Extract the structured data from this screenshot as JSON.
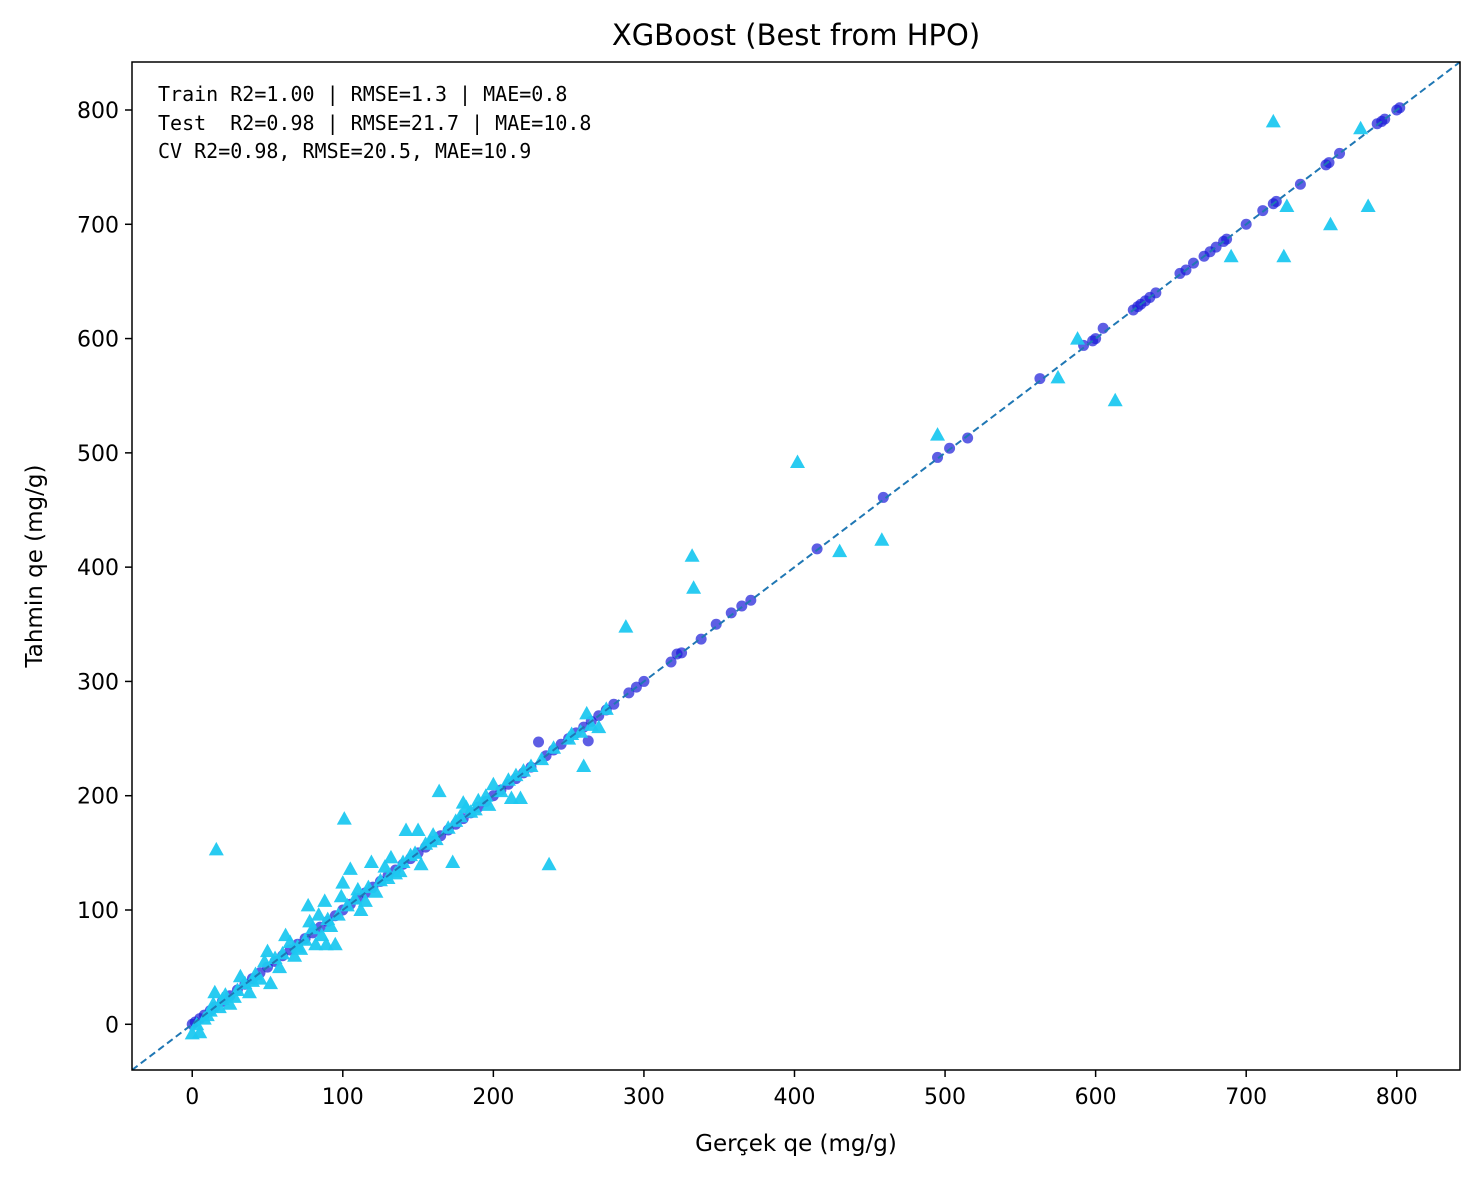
{
  "chart_data": {
    "type": "scatter",
    "title": "XGBoost (Best from HPO)",
    "xlabel": "Gerçek qe (mg/g)",
    "ylabel": "Tahmin qe (mg/g)",
    "xlim": [
      -40,
      842
    ],
    "ylim": [
      -40,
      842
    ],
    "xticks": [
      0,
      100,
      200,
      300,
      400,
      500,
      600,
      700,
      800
    ],
    "yticks": [
      0,
      100,
      200,
      300,
      400,
      500,
      600,
      700,
      800
    ],
    "grid": false,
    "annotations": [
      "Train R2=1.00 | RMSE=1.3 | MAE=0.8",
      "Test  R2=0.98 | RMSE=21.7 | MAE=10.8",
      "CV R2=0.98, RMSE=20.5, MAE=10.9"
    ],
    "reference_line": {
      "style": "dashed",
      "color": "#1f77b4",
      "from": [
        -40,
        -40
      ],
      "to": [
        842,
        842
      ]
    },
    "series": [
      {
        "marker": "circle",
        "color": "#1a1ad8",
        "points": [
          [
            0,
            0
          ],
          [
            2,
            2
          ],
          [
            5,
            5
          ],
          [
            8,
            8
          ],
          [
            12,
            12
          ],
          [
            15,
            15
          ],
          [
            20,
            20
          ],
          [
            25,
            25
          ],
          [
            30,
            30
          ],
          [
            35,
            35
          ],
          [
            40,
            40
          ],
          [
            45,
            45
          ],
          [
            50,
            50
          ],
          [
            55,
            55
          ],
          [
            60,
            60
          ],
          [
            65,
            65
          ],
          [
            70,
            70
          ],
          [
            75,
            75
          ],
          [
            80,
            80
          ],
          [
            85,
            85
          ],
          [
            90,
            90
          ],
          [
            95,
            95
          ],
          [
            100,
            100
          ],
          [
            105,
            105
          ],
          [
            110,
            110
          ],
          [
            115,
            115
          ],
          [
            120,
            120
          ],
          [
            125,
            125
          ],
          [
            130,
            130
          ],
          [
            135,
            135
          ],
          [
            140,
            140
          ],
          [
            145,
            145
          ],
          [
            150,
            150
          ],
          [
            155,
            155
          ],
          [
            160,
            160
          ],
          [
            165,
            165
          ],
          [
            170,
            170
          ],
          [
            175,
            175
          ],
          [
            180,
            180
          ],
          [
            185,
            185
          ],
          [
            190,
            190
          ],
          [
            195,
            195
          ],
          [
            200,
            200
          ],
          [
            205,
            205
          ],
          [
            210,
            210
          ],
          [
            215,
            215
          ],
          [
            220,
            220
          ],
          [
            225,
            225
          ],
          [
            230,
            247
          ],
          [
            235,
            235
          ],
          [
            240,
            240
          ],
          [
            245,
            245
          ],
          [
            250,
            250
          ],
          [
            255,
            255
          ],
          [
            260,
            260
          ],
          [
            263,
            248
          ],
          [
            265,
            265
          ],
          [
            270,
            270
          ],
          [
            275,
            275
          ],
          [
            280,
            280
          ],
          [
            290,
            290
          ],
          [
            295,
            295
          ],
          [
            300,
            300
          ],
          [
            318,
            317
          ],
          [
            322,
            324
          ],
          [
            325,
            325
          ],
          [
            338,
            337
          ],
          [
            348,
            350
          ],
          [
            358,
            360
          ],
          [
            365,
            366
          ],
          [
            371,
            371
          ],
          [
            415,
            416
          ],
          [
            459,
            461
          ],
          [
            495,
            496
          ],
          [
            503,
            504
          ],
          [
            515,
            513
          ],
          [
            563,
            565
          ],
          [
            592,
            594
          ],
          [
            598,
            598
          ],
          [
            600,
            600
          ],
          [
            605,
            609
          ],
          [
            625,
            625
          ],
          [
            628,
            628
          ],
          [
            630,
            630
          ],
          [
            633,
            633
          ],
          [
            636,
            636
          ],
          [
            640,
            640
          ],
          [
            656,
            657
          ],
          [
            660,
            660
          ],
          [
            665,
            666
          ],
          [
            672,
            672
          ],
          [
            676,
            676
          ],
          [
            680,
            680
          ],
          [
            685,
            685
          ],
          [
            687,
            687
          ],
          [
            700,
            700
          ],
          [
            711,
            712
          ],
          [
            718,
            718
          ],
          [
            720,
            720
          ],
          [
            736,
            735
          ],
          [
            753,
            752
          ],
          [
            755,
            754
          ],
          [
            762,
            762
          ],
          [
            787,
            788
          ],
          [
            790,
            790
          ],
          [
            792,
            792
          ],
          [
            800,
            800
          ],
          [
            802,
            802
          ]
        ]
      },
      {
        "marker": "triangle",
        "color": "#1ec8f0",
        "points": [
          [
            0,
            -8
          ],
          [
            3,
            0
          ],
          [
            5,
            -7
          ],
          [
            8,
            5
          ],
          [
            10,
            8
          ],
          [
            12,
            12
          ],
          [
            14,
            18
          ],
          [
            16,
            153
          ],
          [
            15,
            28
          ],
          [
            18,
            15
          ],
          [
            20,
            22
          ],
          [
            22,
            26
          ],
          [
            25,
            18
          ],
          [
            28,
            24
          ],
          [
            30,
            30
          ],
          [
            32,
            42
          ],
          [
            35,
            36
          ],
          [
            38,
            28
          ],
          [
            40,
            38
          ],
          [
            42,
            44
          ],
          [
            45,
            40
          ],
          [
            48,
            55
          ],
          [
            50,
            64
          ],
          [
            52,
            36
          ],
          [
            55,
            58
          ],
          [
            58,
            50
          ],
          [
            60,
            62
          ],
          [
            62,
            78
          ],
          [
            65,
            72
          ],
          [
            68,
            60
          ],
          [
            70,
            68
          ],
          [
            72,
            66
          ],
          [
            75,
            74
          ],
          [
            77,
            104
          ],
          [
            78,
            90
          ],
          [
            80,
            84
          ],
          [
            82,
            70
          ],
          [
            84,
            96
          ],
          [
            86,
            78
          ],
          [
            88,
            108
          ],
          [
            89,
            70
          ],
          [
            90,
            92
          ],
          [
            92,
            86
          ],
          [
            95,
            70
          ],
          [
            97,
            96
          ],
          [
            99,
            112
          ],
          [
            100,
            124
          ],
          [
            101,
            180
          ],
          [
            103,
            104
          ],
          [
            105,
            136
          ],
          [
            108,
            110
          ],
          [
            110,
            118
          ],
          [
            112,
            100
          ],
          [
            115,
            108
          ],
          [
            117,
            120
          ],
          [
            119,
            142
          ],
          [
            122,
            116
          ],
          [
            125,
            126
          ],
          [
            128,
            138
          ],
          [
            130,
            128
          ],
          [
            132,
            146
          ],
          [
            135,
            132
          ],
          [
            138,
            134
          ],
          [
            140,
            142
          ],
          [
            142,
            170
          ],
          [
            145,
            148
          ],
          [
            148,
            150
          ],
          [
            150,
            170
          ],
          [
            152,
            140
          ],
          [
            155,
            158
          ],
          [
            158,
            160
          ],
          [
            160,
            166
          ],
          [
            162,
            162
          ],
          [
            164,
            204
          ],
          [
            170,
            172
          ],
          [
            173,
            142
          ],
          [
            175,
            178
          ],
          [
            178,
            182
          ],
          [
            180,
            194
          ],
          [
            182,
            190
          ],
          [
            185,
            186
          ],
          [
            188,
            188
          ],
          [
            190,
            196
          ],
          [
            195,
            200
          ],
          [
            197,
            192
          ],
          [
            200,
            210
          ],
          [
            205,
            204
          ],
          [
            210,
            214
          ],
          [
            212,
            198
          ],
          [
            215,
            218
          ],
          [
            218,
            198
          ],
          [
            220,
            222
          ],
          [
            225,
            226
          ],
          [
            232,
            232
          ],
          [
            237,
            140
          ],
          [
            240,
            242
          ],
          [
            250,
            250
          ],
          [
            252,
            254
          ],
          [
            258,
            256
          ],
          [
            260,
            226
          ],
          [
            262,
            272
          ],
          [
            265,
            262
          ],
          [
            270,
            260
          ],
          [
            275,
            276
          ],
          [
            288,
            348
          ],
          [
            332,
            410
          ],
          [
            333,
            382
          ],
          [
            402,
            492
          ],
          [
            430,
            414
          ],
          [
            458,
            424
          ],
          [
            495,
            516
          ],
          [
            575,
            566
          ],
          [
            588,
            600
          ],
          [
            613,
            546
          ],
          [
            690,
            672
          ],
          [
            718,
            790
          ],
          [
            725,
            672
          ],
          [
            727,
            716
          ],
          [
            756,
            700
          ],
          [
            776,
            784
          ],
          [
            781,
            716
          ]
        ]
      }
    ]
  }
}
